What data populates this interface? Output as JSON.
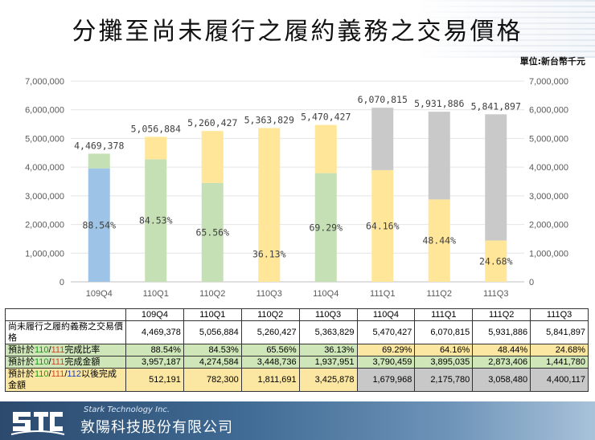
{
  "title": "分攤至尚未履行之履約義務之交易價格",
  "unit_label": "單位:新台幣千元",
  "chart_data": {
    "type": "bar",
    "stacked": true,
    "categories": [
      "109Q4",
      "110Q1",
      "110Q2",
      "110Q3",
      "110Q4",
      "111Q1",
      "111Q2",
      "111Q3"
    ],
    "y_ticks": [
      "0",
      "1,000,000",
      "2,000,000",
      "3,000,000",
      "4,000,000",
      "5,000,000",
      "6,000,000",
      "7,000,000"
    ],
    "ylim": [
      0,
      7000000
    ],
    "totals": [
      4469378,
      5056884,
      5260427,
      5363829,
      5470427,
      6070815,
      5931886,
      5841897
    ],
    "total_labels": [
      "4,469,378",
      "5,056,884",
      "5,260,427",
      "5,363,829",
      "5,470,427",
      "6,070,815",
      "5,931,886",
      "5,841,897"
    ],
    "completed": [
      3957187,
      4274584,
      3448736,
      1937951,
      3790459,
      3895035,
      2873406,
      1441780
    ],
    "remaining": [
      512191,
      782300,
      1811691,
      3425878,
      1679968,
      2175780,
      3058480,
      4400117
    ],
    "pct_labels": [
      "88.54%",
      "84.53%",
      "65.56%",
      "36.13%",
      "69.29%",
      "64.16%",
      "48.44%",
      "24.68%"
    ],
    "bottom_colors": [
      "#9dc3e6",
      "#c5e0b4",
      "#c5e0b4",
      "#ffe699",
      "#c5e0b4",
      "#ffe699",
      "#ffe699",
      "#ffe699"
    ],
    "top_colors": [
      "#c5e0b4",
      "#ffe699",
      "#ffe699",
      "#ffe699",
      "#ffe699",
      "#c9c9c9",
      "#c9c9c9",
      "#c9c9c9"
    ]
  },
  "table": {
    "headers": [
      "109Q4",
      "110Q1",
      "110Q2",
      "110Q3",
      "110Q4",
      "111Q1",
      "111Q2",
      "111Q3"
    ],
    "row1_label": "尚未履行之履約義務之交易價格",
    "row1": [
      "4,469,378",
      "5,056,884",
      "5,260,427",
      "5,363,829",
      "5,470,427",
      "6,070,815",
      "5,931,886",
      "5,841,897"
    ],
    "row2_label": {
      "p1": "預計於",
      "y110": "110",
      "slash": "/",
      "y111": "111",
      "p2": "完成比率"
    },
    "row2": [
      "88.54%",
      "84.53%",
      "65.56%",
      "36.13%",
      "69.29%",
      "64.16%",
      "48.44%",
      "24.68%"
    ],
    "row3_label": {
      "p1": "預計於",
      "y110": "110",
      "slash": "/",
      "y111": "111",
      "p2": "完成金額"
    },
    "row3": [
      "3,957,187",
      "4,274,584",
      "3,448,736",
      "1,937,951",
      "3,790,459",
      "3,895,035",
      "2,873,406",
      "1,441,780"
    ],
    "row4_label": {
      "p1": "預計於",
      "y110": "110",
      "slash1": "/",
      "y111": "111",
      "slash2": "/",
      "y112": "112",
      "p2": "以後完成金額"
    },
    "row4": [
      "512,191",
      "782,300",
      "1,811,691",
      "3,425,878",
      "1,679,968",
      "2,175,780",
      "3,058,480",
      "4,400,117"
    ]
  },
  "footer": {
    "company_en": "Stark Technology Inc.",
    "company_zh": "敦陽科技股份有限公司"
  }
}
